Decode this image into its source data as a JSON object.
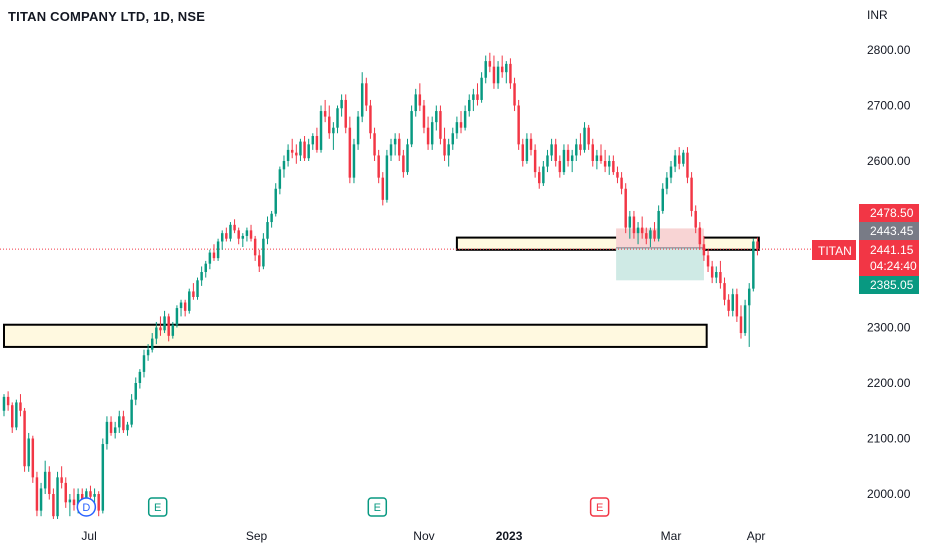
{
  "header": {
    "title": "TITAN COMPANY LTD, 1D, NSE"
  },
  "chart_data": {
    "type": "candlestick",
    "title": "TITAN COMPANY LTD, 1D, NSE",
    "currency": "INR",
    "ylim": [
      1950,
      2860
    ],
    "y_ticks": [
      "2800.00",
      "2700.00",
      "2600.00",
      "2500.00",
      "2400.00",
      "2300.00",
      "2200.00",
      "2100.00",
      "2000.00"
    ],
    "y_tick_values": [
      2800,
      2700,
      2600,
      2500,
      2400,
      2300,
      2200,
      2100,
      2000
    ],
    "x_ticks": [
      "Jul",
      "Sep",
      "Nov",
      "2023",
      "Mar",
      "Apr"
    ],
    "x_tick_days": [
      31,
      92,
      153,
      184,
      243,
      274
    ],
    "x_range_days": [
      0,
      290
    ],
    "symbol": "TITAN",
    "price_labels": {
      "last": "2441.15",
      "countdown": "04:24:40",
      "target": "2478.50",
      "entry": "2443.45",
      "stop": "2385.05"
    },
    "price_values": {
      "last": 2441.15,
      "target": 2478.5,
      "entry": 2443.45,
      "stop": 2385.05
    },
    "zones": [
      {
        "name": "resistance-zone",
        "low": 2440,
        "high": 2462,
        "from_day": 165,
        "to_day": 275
      },
      {
        "name": "support-zone",
        "low": 2265,
        "high": 2305,
        "from_day": 0,
        "to_day": 256
      }
    ],
    "position": {
      "from_day": 223,
      "to_day": 255
    },
    "event_markers": [
      {
        "label": "D",
        "day": 30,
        "color": "#2962ff"
      },
      {
        "label": "E",
        "day": 56,
        "color": "#089981"
      },
      {
        "label": "E",
        "day": 136,
        "color": "#089981"
      },
      {
        "label": "E",
        "day": 217,
        "color": "#f23645"
      }
    ],
    "colors": {
      "up": "#089981",
      "down": "#f23645",
      "zone_fill": "#fff9e0",
      "zone_border": "#000000",
      "target_fill": "#f8d4d4",
      "stop_fill": "#cfeae5",
      "entry_tag": "#787b86"
    },
    "candles": [
      [
        2150,
        2180,
        2140,
        2175
      ],
      [
        2175,
        2185,
        2150,
        2160
      ],
      [
        2160,
        2165,
        2110,
        2120
      ],
      [
        2120,
        2170,
        2115,
        2165
      ],
      [
        2165,
        2180,
        2140,
        2150
      ],
      [
        2150,
        2155,
        2040,
        2050
      ],
      [
        2050,
        2110,
        2040,
        2100
      ],
      [
        2100,
        2105,
        2020,
        2030
      ],
      [
        2030,
        2040,
        1960,
        1970
      ],
      [
        1970,
        2020,
        1960,
        2010
      ],
      [
        2010,
        2060,
        2000,
        2040
      ],
      [
        2040,
        2050,
        1990,
        2000
      ],
      [
        2000,
        2010,
        1955,
        1960
      ],
      [
        1960,
        2040,
        1955,
        2030
      ],
      [
        2030,
        2050,
        2010,
        2020
      ],
      [
        2020,
        2030,
        1975,
        1985
      ],
      [
        1985,
        2000,
        1960,
        1990
      ],
      [
        1990,
        2010,
        1970,
        1980
      ],
      [
        1980,
        2010,
        1965,
        2000
      ],
      [
        2000,
        2010,
        1965,
        1975
      ],
      [
        1975,
        2010,
        1965,
        2005
      ],
      [
        2005,
        2015,
        1985,
        1995
      ],
      [
        1995,
        2010,
        1975,
        2000
      ],
      [
        2000,
        2005,
        1960,
        1970
      ],
      [
        1970,
        2100,
        1965,
        2090
      ],
      [
        2090,
        2140,
        2080,
        2130
      ],
      [
        2130,
        2140,
        2105,
        2110
      ],
      [
        2110,
        2130,
        2100,
        2120
      ],
      [
        2120,
        2150,
        2110,
        2140
      ],
      [
        2140,
        2150,
        2110,
        2115
      ],
      [
        2115,
        2130,
        2105,
        2125
      ],
      [
        2125,
        2180,
        2120,
        2170
      ],
      [
        2170,
        2210,
        2160,
        2200
      ],
      [
        2200,
        2225,
        2190,
        2220
      ],
      [
        2220,
        2260,
        2210,
        2250
      ],
      [
        2250,
        2270,
        2240,
        2260
      ],
      [
        2260,
        2290,
        2255,
        2280
      ],
      [
        2280,
        2310,
        2270,
        2300
      ],
      [
        2300,
        2320,
        2285,
        2295
      ],
      [
        2295,
        2330,
        2290,
        2320
      ],
      [
        2320,
        2325,
        2275,
        2285
      ],
      [
        2285,
        2310,
        2280,
        2305
      ],
      [
        2305,
        2340,
        2300,
        2335
      ],
      [
        2335,
        2350,
        2320,
        2345
      ],
      [
        2345,
        2350,
        2320,
        2330
      ],
      [
        2330,
        2370,
        2325,
        2365
      ],
      [
        2365,
        2380,
        2350,
        2355
      ],
      [
        2355,
        2390,
        2350,
        2385
      ],
      [
        2385,
        2410,
        2375,
        2400
      ],
      [
        2400,
        2420,
        2390,
        2415
      ],
      [
        2415,
        2440,
        2405,
        2435
      ],
      [
        2435,
        2450,
        2420,
        2425
      ],
      [
        2425,
        2460,
        2420,
        2455
      ],
      [
        2455,
        2475,
        2440,
        2470
      ],
      [
        2470,
        2480,
        2455,
        2460
      ],
      [
        2460,
        2490,
        2455,
        2485
      ],
      [
        2485,
        2495,
        2470,
        2475
      ],
      [
        2475,
        2480,
        2450,
        2460
      ],
      [
        2460,
        2470,
        2445,
        2465
      ],
      [
        2465,
        2480,
        2455,
        2475
      ],
      [
        2475,
        2485,
        2455,
        2460
      ],
      [
        2460,
        2465,
        2420,
        2430
      ],
      [
        2430,
        2440,
        2400,
        2410
      ],
      [
        2410,
        2470,
        2405,
        2460
      ],
      [
        2460,
        2500,
        2450,
        2490
      ],
      [
        2490,
        2510,
        2480,
        2505
      ],
      [
        2505,
        2560,
        2500,
        2550
      ],
      [
        2550,
        2590,
        2540,
        2585
      ],
      [
        2585,
        2610,
        2570,
        2600
      ],
      [
        2600,
        2630,
        2590,
        2620
      ],
      [
        2620,
        2640,
        2605,
        2615
      ],
      [
        2615,
        2630,
        2595,
        2610
      ],
      [
        2610,
        2640,
        2600,
        2635
      ],
      [
        2635,
        2645,
        2600,
        2605
      ],
      [
        2605,
        2640,
        2600,
        2630
      ],
      [
        2630,
        2650,
        2620,
        2645
      ],
      [
        2645,
        2660,
        2615,
        2620
      ],
      [
        2620,
        2700,
        2615,
        2690
      ],
      [
        2690,
        2710,
        2670,
        2680
      ],
      [
        2680,
        2700,
        2640,
        2650
      ],
      [
        2650,
        2670,
        2620,
        2660
      ],
      [
        2660,
        2700,
        2650,
        2695
      ],
      [
        2695,
        2720,
        2680,
        2710
      ],
      [
        2710,
        2720,
        2650,
        2660
      ],
      [
        2660,
        2680,
        2560,
        2570
      ],
      [
        2570,
        2640,
        2560,
        2630
      ],
      [
        2630,
        2690,
        2620,
        2680
      ],
      [
        2680,
        2760,
        2670,
        2740
      ],
      [
        2740,
        2750,
        2690,
        2700
      ],
      [
        2700,
        2710,
        2640,
        2650
      ],
      [
        2650,
        2660,
        2600,
        2610
      ],
      [
        2610,
        2620,
        2560,
        2570
      ],
      [
        2570,
        2580,
        2520,
        2530
      ],
      [
        2530,
        2620,
        2525,
        2610
      ],
      [
        2610,
        2640,
        2600,
        2630
      ],
      [
        2630,
        2650,
        2610,
        2640
      ],
      [
        2640,
        2650,
        2600,
        2610
      ],
      [
        2610,
        2620,
        2570,
        2580
      ],
      [
        2580,
        2640,
        2575,
        2630
      ],
      [
        2630,
        2700,
        2625,
        2690
      ],
      [
        2690,
        2730,
        2680,
        2720
      ],
      [
        2720,
        2740,
        2690,
        2700
      ],
      [
        2700,
        2710,
        2650,
        2660
      ],
      [
        2660,
        2680,
        2620,
        2630
      ],
      [
        2630,
        2680,
        2620,
        2670
      ],
      [
        2670,
        2700,
        2655,
        2690
      ],
      [
        2690,
        2700,
        2630,
        2640
      ],
      [
        2640,
        2660,
        2600,
        2610
      ],
      [
        2610,
        2640,
        2590,
        2630
      ],
      [
        2630,
        2660,
        2620,
        2650
      ],
      [
        2650,
        2680,
        2640,
        2670
      ],
      [
        2670,
        2690,
        2650,
        2660
      ],
      [
        2660,
        2700,
        2655,
        2690
      ],
      [
        2690,
        2720,
        2680,
        2710
      ],
      [
        2710,
        2730,
        2690,
        2720
      ],
      [
        2720,
        2740,
        2700,
        2710
      ],
      [
        2710,
        2760,
        2705,
        2750
      ],
      [
        2750,
        2790,
        2740,
        2780
      ],
      [
        2780,
        2795,
        2760,
        2770
      ],
      [
        2770,
        2790,
        2730,
        2740
      ],
      [
        2740,
        2780,
        2730,
        2770
      ],
      [
        2770,
        2790,
        2750,
        2760
      ],
      [
        2760,
        2780,
        2740,
        2775
      ],
      [
        2775,
        2785,
        2730,
        2740
      ],
      [
        2740,
        2750,
        2690,
        2700
      ],
      [
        2700,
        2710,
        2620,
        2630
      ],
      [
        2630,
        2640,
        2590,
        2600
      ],
      [
        2600,
        2650,
        2595,
        2640
      ],
      [
        2640,
        2650,
        2610,
        2620
      ],
      [
        2620,
        2630,
        2570,
        2580
      ],
      [
        2580,
        2590,
        2550,
        2560
      ],
      [
        2560,
        2600,
        2555,
        2590
      ],
      [
        2590,
        2620,
        2580,
        2610
      ],
      [
        2610,
        2640,
        2600,
        2630
      ],
      [
        2630,
        2640,
        2590,
        2600
      ],
      [
        2600,
        2610,
        2570,
        2580
      ],
      [
        2580,
        2630,
        2575,
        2620
      ],
      [
        2620,
        2630,
        2590,
        2600
      ],
      [
        2600,
        2620,
        2580,
        2610
      ],
      [
        2610,
        2640,
        2600,
        2630
      ],
      [
        2630,
        2650,
        2610,
        2620
      ],
      [
        2620,
        2670,
        2615,
        2660
      ],
      [
        2660,
        2665,
        2620,
        2630
      ],
      [
        2630,
        2640,
        2590,
        2600
      ],
      [
        2600,
        2620,
        2585,
        2610
      ],
      [
        2610,
        2630,
        2595,
        2600
      ],
      [
        2600,
        2620,
        2580,
        2590
      ],
      [
        2590,
        2610,
        2575,
        2600
      ],
      [
        2600,
        2610,
        2575,
        2580
      ],
      [
        2580,
        2590,
        2560,
        2570
      ],
      [
        2570,
        2580,
        2540,
        2550
      ],
      [
        2550,
        2560,
        2470,
        2480
      ],
      [
        2480,
        2510,
        2460,
        2500
      ],
      [
        2500,
        2510,
        2460,
        2470
      ],
      [
        2470,
        2490,
        2450,
        2480
      ],
      [
        2480,
        2500,
        2460,
        2470
      ],
      [
        2470,
        2480,
        2450,
        2460
      ],
      [
        2460,
        2480,
        2445,
        2475
      ],
      [
        2475,
        2490,
        2455,
        2460
      ],
      [
        2460,
        2520,
        2455,
        2510
      ],
      [
        2510,
        2560,
        2505,
        2550
      ],
      [
        2550,
        2580,
        2540,
        2570
      ],
      [
        2570,
        2600,
        2560,
        2590
      ],
      [
        2590,
        2620,
        2580,
        2610
      ],
      [
        2610,
        2625,
        2585,
        2595
      ],
      [
        2595,
        2620,
        2590,
        2615
      ],
      [
        2615,
        2625,
        2560,
        2570
      ],
      [
        2570,
        2580,
        2500,
        2510
      ],
      [
        2510,
        2520,
        2470,
        2480
      ],
      [
        2480,
        2490,
        2440,
        2450
      ],
      [
        2450,
        2465,
        2420,
        2430
      ],
      [
        2430,
        2440,
        2400,
        2410
      ],
      [
        2410,
        2420,
        2380,
        2390
      ],
      [
        2390,
        2410,
        2380,
        2400
      ],
      [
        2400,
        2420,
        2370,
        2380
      ],
      [
        2380,
        2390,
        2340,
        2350
      ],
      [
        2350,
        2360,
        2320,
        2330
      ],
      [
        2330,
        2370,
        2320,
        2360
      ],
      [
        2360,
        2370,
        2310,
        2320
      ],
      [
        2320,
        2340,
        2280,
        2290
      ],
      [
        2290,
        2350,
        2285,
        2340
      ],
      [
        2340,
        2380,
        2265,
        2370
      ],
      [
        2370,
        2460,
        2365,
        2455
      ],
      [
        2455,
        2462,
        2430,
        2441.15
      ]
    ],
    "start_day": 0,
    "day_step": 1.5
  }
}
